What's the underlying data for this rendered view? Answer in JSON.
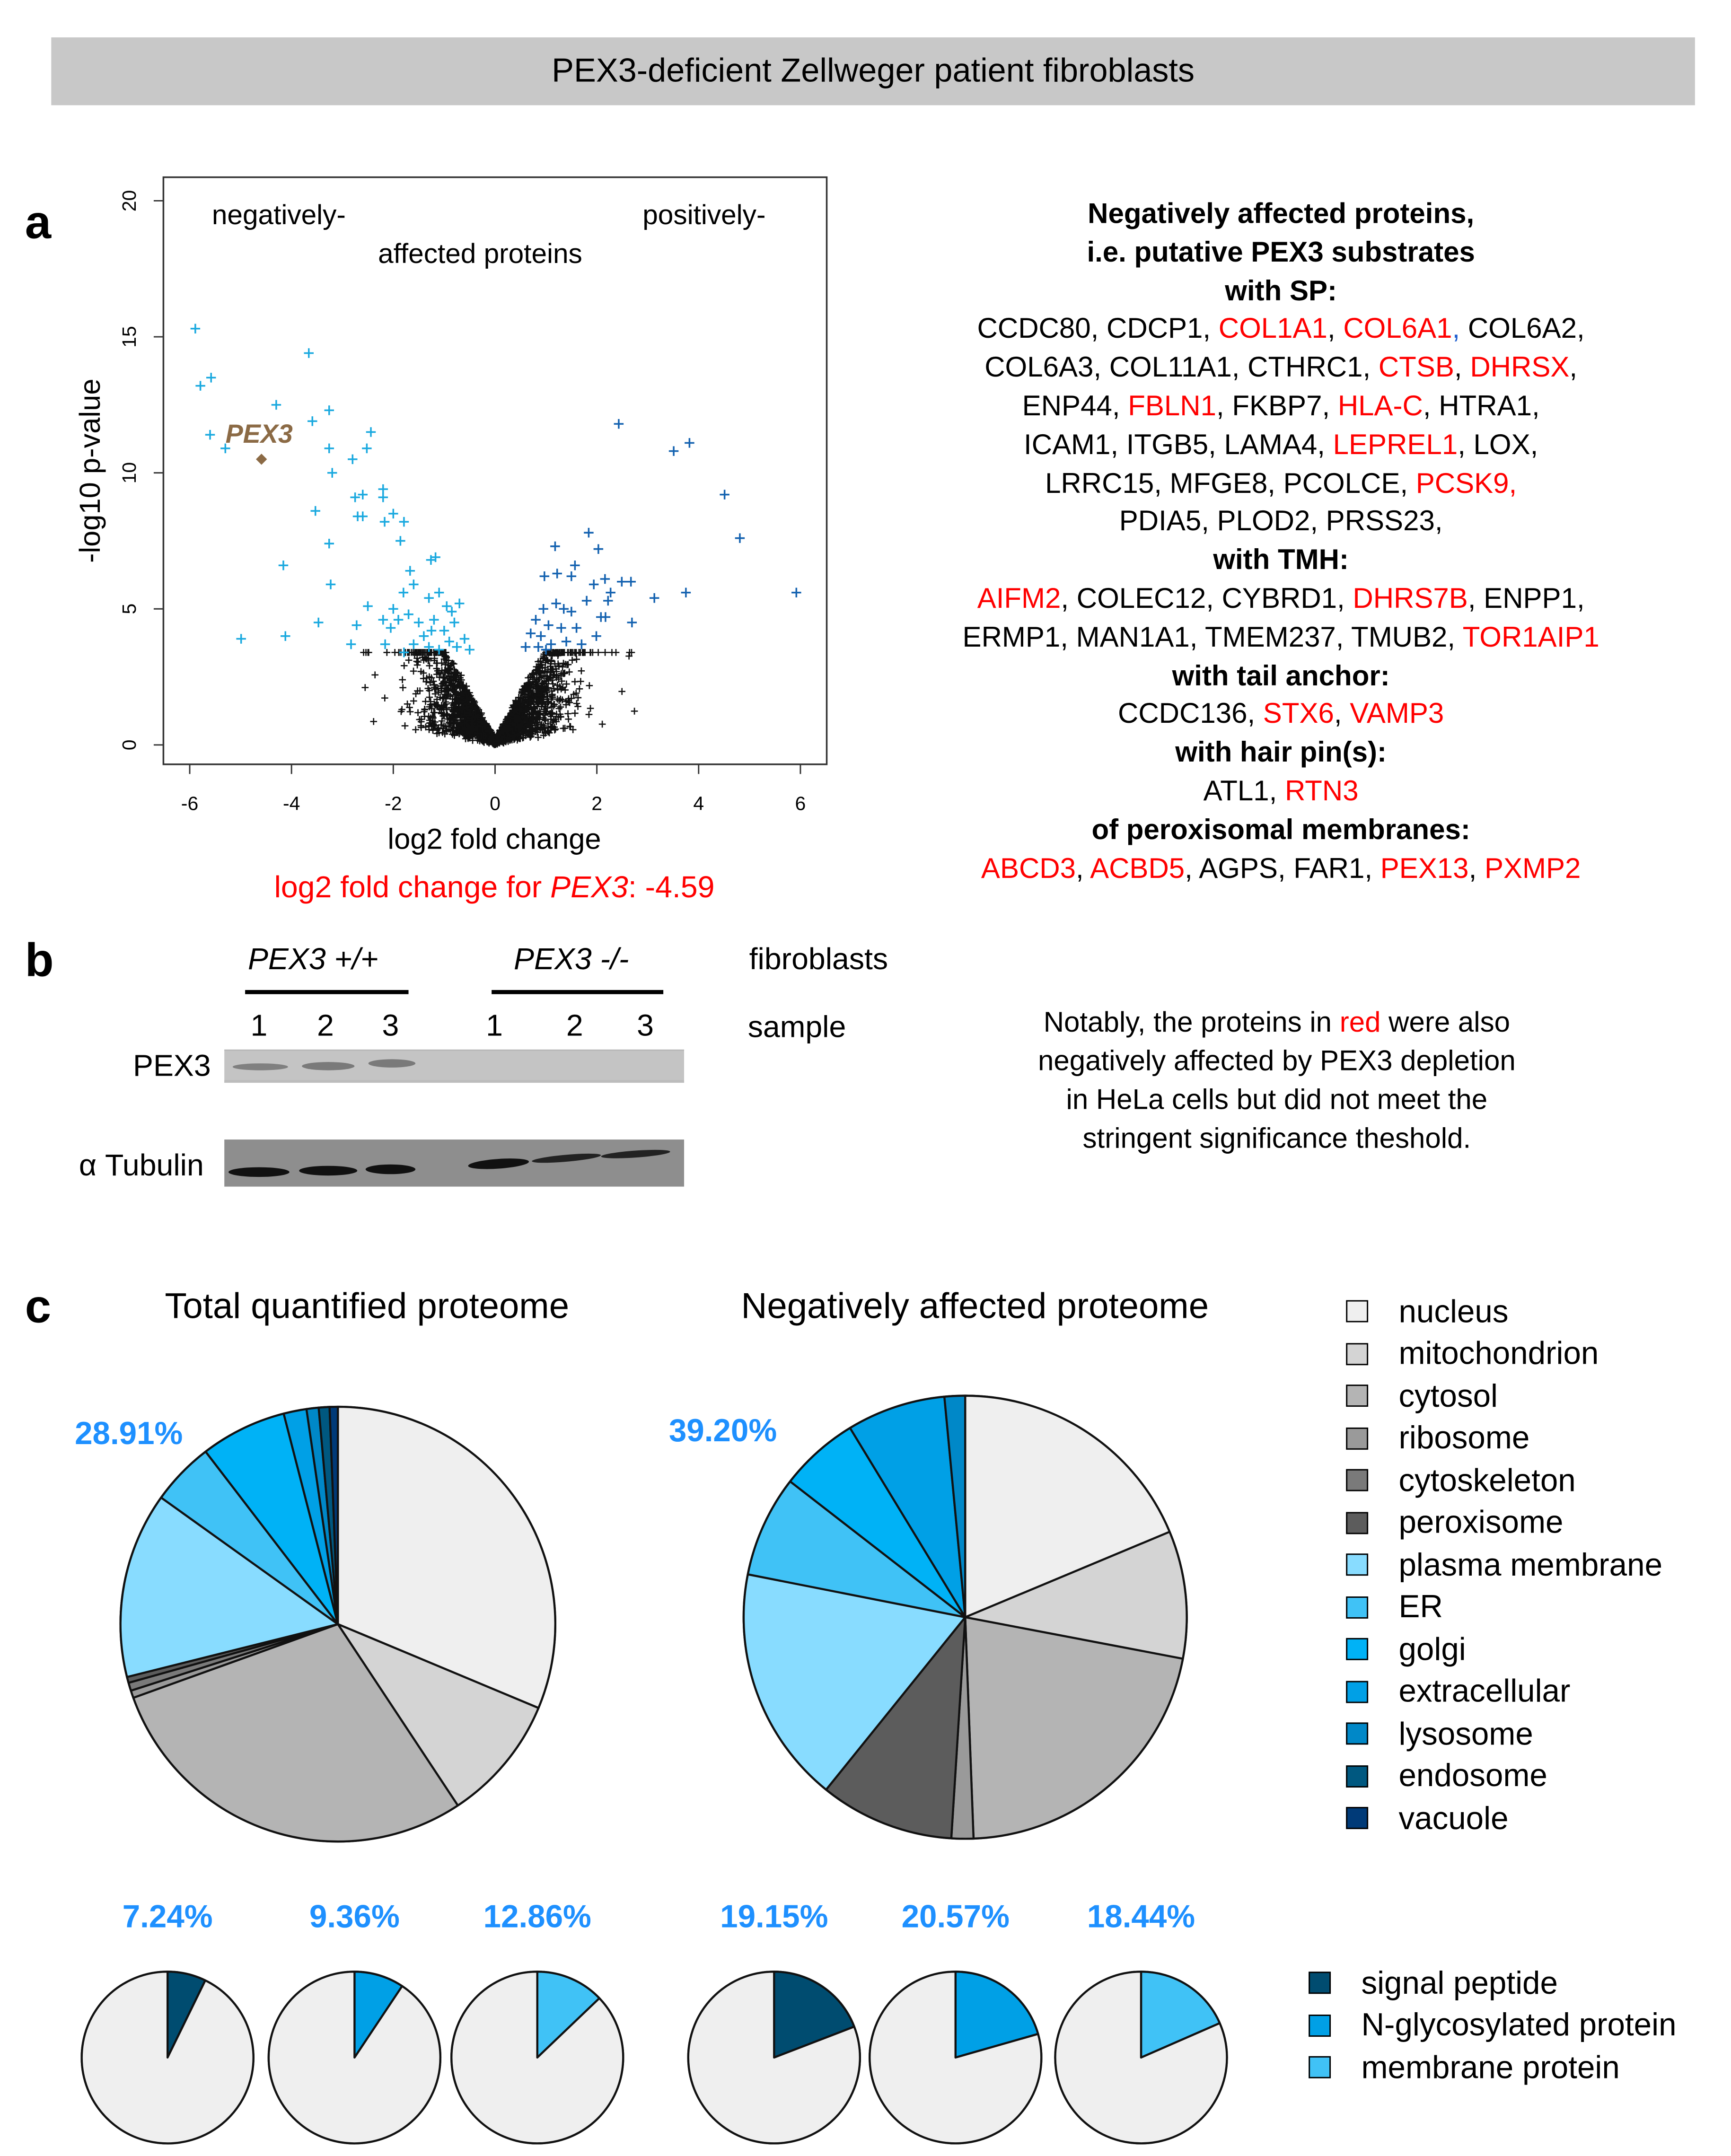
{
  "header": {
    "title": "PEX3-deficient Zellweger patient fibroblasts"
  },
  "panel_labels": {
    "a": "a",
    "b": "b",
    "c": "c"
  },
  "chart_data": [
    {
      "type": "scatter",
      "name": "volcano-plot",
      "xlabel": "log2 fold change",
      "ylabel": "-log10 p-value",
      "xlim": [
        -6.5,
        6.5
      ],
      "ylim": [
        -0.7,
        21
      ],
      "xticks": [
        "-6",
        "-4",
        "-2",
        "0",
        "2",
        "4",
        "6"
      ],
      "xtick_values": [
        -6,
        -4,
        -2,
        0,
        2,
        4,
        6
      ],
      "yticks": [
        "0",
        "5",
        "10",
        "15",
        "20"
      ],
      "ytick_values": [
        0,
        5,
        10,
        15,
        20
      ],
      "annotations": {
        "left": "negatively-",
        "middle": "affected proteins",
        "right": "positively-"
      },
      "highlight": {
        "label": "PEX3",
        "x": -4.59,
        "y": 10.5,
        "color": "#8b6a45"
      },
      "caption": {
        "prefix": "log2 fold change for ",
        "gene": "PEX3",
        "suffix": ": -4.59"
      },
      "colors": {
        "negative": "#1aa9df",
        "positive": "#1462b0",
        "nonsignificant": "#111111"
      },
      "negative_points": [
        [
          -5.89,
          15.3
        ],
        [
          -5.79,
          13.2
        ],
        [
          -5.58,
          13.5
        ],
        [
          -5.6,
          11.4
        ],
        [
          -5.3,
          10.9
        ],
        [
          -4.99,
          3.9
        ],
        [
          -4.3,
          12.5
        ],
        [
          -4.16,
          6.6
        ],
        [
          -4.12,
          4.0
        ],
        [
          -3.66,
          14.4
        ],
        [
          -3.59,
          11.9
        ],
        [
          -3.53,
          8.6
        ],
        [
          -3.47,
          4.5
        ],
        [
          -3.26,
          12.3
        ],
        [
          -3.26,
          10.9
        ],
        [
          -3.2,
          10.0
        ],
        [
          -3.26,
          7.4
        ],
        [
          -3.23,
          5.9
        ],
        [
          -2.8,
          10.5
        ],
        [
          -2.72,
          4.4
        ],
        [
          -2.52,
          10.9
        ],
        [
          -2.44,
          11.5
        ],
        [
          -2.5,
          5.1
        ],
        [
          -2.75,
          9.1
        ],
        [
          -2.6,
          9.2
        ],
        [
          -2.7,
          8.4
        ],
        [
          -2.6,
          8.4
        ],
        [
          -2.2,
          9.4
        ],
        [
          -2.2,
          9.1
        ],
        [
          -2.17,
          8.2
        ],
        [
          -2.0,
          8.5
        ],
        [
          -1.79,
          8.2
        ],
        [
          -1.86,
          7.5
        ],
        [
          -1.26,
          6.8
        ],
        [
          -1.17,
          6.9
        ],
        [
          -1.67,
          6.4
        ],
        [
          -2.83,
          3.7
        ],
        [
          -2.16,
          3.7
        ],
        [
          -1.79,
          3.4
        ],
        [
          -2.0,
          5.0
        ],
        [
          -1.9,
          4.6
        ],
        [
          -2.2,
          4.6
        ],
        [
          -1.8,
          5.6
        ],
        [
          -1.6,
          5.9
        ],
        [
          -1.5,
          4.5
        ],
        [
          -1.4,
          4.0
        ],
        [
          -1.3,
          5.4
        ],
        [
          -1.2,
          4.6
        ],
        [
          -1.1,
          5.6
        ],
        [
          -1.0,
          4.2
        ],
        [
          -0.95,
          5.1
        ],
        [
          -0.9,
          3.8
        ],
        [
          -0.8,
          4.5
        ],
        [
          -0.75,
          3.6
        ],
        [
          -0.7,
          5.2
        ],
        [
          -0.6,
          3.9
        ],
        [
          -0.5,
          3.5
        ],
        [
          -1.6,
          3.7
        ],
        [
          -1.3,
          3.6
        ],
        [
          -1.1,
          3.5
        ],
        [
          -2.05,
          4.3
        ],
        [
          -1.7,
          4.8
        ],
        [
          -0.85,
          4.9
        ],
        [
          -1.25,
          4.2
        ]
      ],
      "positive_points": [
        [
          2.43,
          11.8
        ],
        [
          3.51,
          10.8
        ],
        [
          3.82,
          11.1
        ],
        [
          4.51,
          9.2
        ],
        [
          4.81,
          7.6
        ],
        [
          5.92,
          5.6
        ],
        [
          3.75,
          5.6
        ],
        [
          3.13,
          5.4
        ],
        [
          2.69,
          4.5
        ],
        [
          2.49,
          6.0
        ],
        [
          2.67,
          6.0
        ],
        [
          1.84,
          7.8
        ],
        [
          2.03,
          7.2
        ],
        [
          1.18,
          7.3
        ],
        [
          1.57,
          6.6
        ],
        [
          0.97,
          6.2
        ],
        [
          1.22,
          6.3
        ],
        [
          1.5,
          6.2
        ],
        [
          1.94,
          5.9
        ],
        [
          2.16,
          6.1
        ],
        [
          2.27,
          5.6
        ],
        [
          2.22,
          5.3
        ],
        [
          1.8,
          5.3
        ],
        [
          2.08,
          4.7
        ],
        [
          2.17,
          4.7
        ],
        [
          1.99,
          4.0
        ],
        [
          0.7,
          4.1
        ],
        [
          0.8,
          4.6
        ],
        [
          0.9,
          4.0
        ],
        [
          0.95,
          5.0
        ],
        [
          1.05,
          4.4
        ],
        [
          1.1,
          3.7
        ],
        [
          1.2,
          5.2
        ],
        [
          1.3,
          4.3
        ],
        [
          1.4,
          3.8
        ],
        [
          1.5,
          4.9
        ],
        [
          1.6,
          4.3
        ],
        [
          1.7,
          3.7
        ],
        [
          0.85,
          3.6
        ],
        [
          1.35,
          5.0
        ],
        [
          0.6,
          3.6
        ],
        [
          1.0,
          3.5
        ]
      ]
    },
    {
      "type": "pie",
      "name": "total-quantified-proteome",
      "title": "Total quantified proteome",
      "label": "28.91%",
      "categories": [
        "nucleus",
        "mitochondrion",
        "cytosol",
        "ribosome",
        "cytoskeleton",
        "peroxisome",
        "plasma membrane",
        "ER",
        "golgi",
        "extracellular",
        "lysosome",
        "endosome",
        "vacuole"
      ],
      "values": [
        31.3,
        9.4,
        28.8,
        0.55,
        0.6,
        0.44,
        13.8,
        4.7,
        6.4,
        1.7,
        0.9,
        0.8,
        0.61
      ]
    },
    {
      "type": "pie",
      "name": "negatively-affected-proteome",
      "title": "Negatively affected proteome",
      "label": "39.20%",
      "categories": [
        "nucleus",
        "mitochondrion",
        "cytosol",
        "ribosome",
        "cytoskeleton",
        "peroxisome",
        "plasma membrane",
        "ER",
        "golgi",
        "extracellular",
        "lysosome",
        "endosome",
        "vacuole"
      ],
      "values": [
        18.7,
        9.3,
        21.4,
        1.6,
        0,
        9.8,
        17.3,
        7.4,
        5.8,
        7.2,
        1.5,
        0,
        0
      ]
    },
    {
      "type": "pie",
      "name": "small-pies",
      "series": [
        {
          "group": "Total quantified proteome",
          "category": "signal peptide",
          "label": "7.24%",
          "value": 7.24
        },
        {
          "group": "Total quantified proteome",
          "category": "N-glycosylated protein",
          "label": "9.36%",
          "value": 9.36
        },
        {
          "group": "Total quantified proteome",
          "category": "membrane protein",
          "label": "12.86%",
          "value": 12.86
        },
        {
          "group": "Negatively affected proteome",
          "category": "signal peptide",
          "label": "19.15%",
          "value": 19.15
        },
        {
          "group": "Negatively affected proteome",
          "category": "N-glycosylated protein",
          "label": "20.57%",
          "value": 20.57
        },
        {
          "group": "Negatively affected proteome",
          "category": "membrane protein",
          "label": "18.44%",
          "value": 18.44
        }
      ]
    }
  ],
  "legend_main": [
    {
      "label": "nucleus",
      "color": "#efefef"
    },
    {
      "label": "mitochondrion",
      "color": "#d4d4d4"
    },
    {
      "label": "cytosol",
      "color": "#b4b4b4"
    },
    {
      "label": "ribosome",
      "color": "#9a9a9a"
    },
    {
      "label": "cytoskeleton",
      "color": "#7a7a7a"
    },
    {
      "label": "peroxisome",
      "color": "#5c5c5c"
    },
    {
      "label": "plasma membrane",
      "color": "#88dcff"
    },
    {
      "label": "ER",
      "color": "#40c2f6"
    },
    {
      "label": "golgi",
      "color": "#00b2f6"
    },
    {
      "label": "extracellular",
      "color": "#00a0e6"
    },
    {
      "label": "lysosome",
      "color": "#0088c8"
    },
    {
      "label": "endosome",
      "color": "#005880"
    },
    {
      "label": "vacuole",
      "color": "#003a78"
    }
  ],
  "legend_small": [
    {
      "label": "signal peptide",
      "color": "#004c70"
    },
    {
      "label": "N-glycosylated protein",
      "color": "#00a0e6"
    },
    {
      "label": "membrane protein",
      "color": "#40c2f6"
    }
  ],
  "protein_list": [
    {
      "head": true,
      "segs": [
        [
          "Negatively affected proteins,",
          "k"
        ]
      ]
    },
    {
      "head": true,
      "segs": [
        [
          "i.e. putative PEX3 substrates",
          "k"
        ]
      ]
    },
    {
      "head": true,
      "segs": [
        [
          "with SP:",
          "k"
        ]
      ]
    },
    {
      "segs": [
        [
          "CCDC80, CDCP1, ",
          "k"
        ],
        [
          "COL1A1",
          "r"
        ],
        [
          ", ",
          "k"
        ],
        [
          "COL6A1",
          "r"
        ],
        [
          ",",
          "b"
        ],
        [
          " COL6A2,",
          "k"
        ]
      ]
    },
    {
      "segs": [
        [
          "COL6A3, COL11A1, CTHRC1, ",
          "k"
        ],
        [
          "CTSB",
          "r"
        ],
        [
          ", ",
          "k"
        ],
        [
          "DHRSX",
          "r"
        ],
        [
          ",",
          "k"
        ]
      ]
    },
    {
      "segs": [
        [
          "ENP44, ",
          "k"
        ],
        [
          "FBLN1",
          "r"
        ],
        [
          ", FKBP7, ",
          "k"
        ],
        [
          "HLA-C",
          "r"
        ],
        [
          ", HTRA1,",
          "k"
        ]
      ]
    },
    {
      "segs": [
        [
          "ICAM1, ITGB5, LAMA4, ",
          "k"
        ],
        [
          "LEPREL1",
          "r"
        ],
        [
          ", LOX,",
          "k"
        ]
      ]
    },
    {
      "segs": [
        [
          "LRRC15, MFGE8, PCOLCE, ",
          "k"
        ],
        [
          "PCSK9,",
          "r"
        ]
      ]
    },
    {
      "segs": [
        [
          "PDIA5, PLOD2, PRSS23,",
          "k"
        ]
      ]
    },
    {
      "head": true,
      "segs": [
        [
          "with TMH:",
          "k"
        ]
      ]
    },
    {
      "segs": [
        [
          "AIFM2",
          "r"
        ],
        [
          ", COLEC12, CYBRD1, ",
          "k"
        ],
        [
          "DHRS7B",
          "r"
        ],
        [
          ", ENPP1,",
          "k"
        ]
      ]
    },
    {
      "segs": [
        [
          "ERMP1, MAN1A1, TMEM237, TMUB2, ",
          "k"
        ],
        [
          "TOR1AIP1",
          "r"
        ]
      ]
    },
    {
      "head": true,
      "segs": [
        [
          "with tail anchor:",
          "k"
        ]
      ]
    },
    {
      "segs": [
        [
          "CCDC136, ",
          "k"
        ],
        [
          "STX6",
          "r"
        ],
        [
          ", ",
          "k"
        ],
        [
          "VAMP3",
          "r"
        ]
      ]
    },
    {
      "head": true,
      "segs": [
        [
          "with hair pin(s):",
          "k"
        ]
      ]
    },
    {
      "segs": [
        [
          "ATL1, ",
          "k"
        ],
        [
          "RTN3",
          "r"
        ]
      ]
    },
    {
      "head": true,
      "segs": [
        [
          "of peroxisomal membranes:",
          "k"
        ]
      ]
    },
    {
      "segs": [
        [
          "ABCD3",
          "r"
        ],
        [
          ", ",
          "k"
        ],
        [
          "ACBD5",
          "r"
        ],
        [
          ", AGPS, FAR1, ",
          "k"
        ],
        [
          "PEX13",
          "r"
        ],
        [
          ", ",
          "k"
        ],
        [
          "PXMP2",
          "r"
        ]
      ]
    }
  ],
  "blot": {
    "group_wt": "PEX3 +/+",
    "group_ko": "PEX3 -/-",
    "fibroblasts_label": "fibroblasts",
    "sample_label": "sample",
    "samples": [
      "1",
      "2",
      "3",
      "1",
      "2",
      "3"
    ],
    "row_pex3": "PEX3",
    "row_tubulin": "α Tubulin"
  },
  "note": {
    "line1_pre": "Notably, the proteins in ",
    "line1_red": "red",
    "line1_post": " were also",
    "line2": "negatively affected by PEX3 depletion",
    "line3": "in HeLa cells but did not meet the",
    "line4": "stringent significance theshold."
  }
}
